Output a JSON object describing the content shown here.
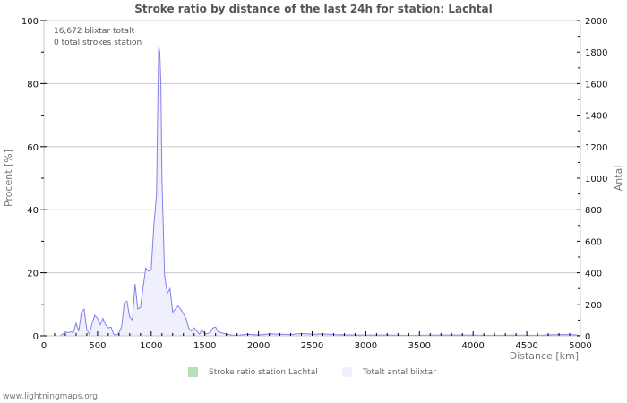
{
  "chart": {
    "title": "Stroke ratio by distance of the last 24h for station: Lachtal",
    "info_line1": "16,672 blixtar totalt",
    "info_line2": "0 total strokes station",
    "left_axis_title": "Procent   [%]",
    "right_axis_title": "Antal",
    "x_axis_title": "Distance   [km]",
    "legend": [
      {
        "label": "Stroke ratio station Lachtal",
        "color": "#b8e0b8"
      },
      {
        "label": "Totalt antal blixtar",
        "color": "#f0f0fc"
      }
    ],
    "footer": "www.lightningmaps.org"
  },
  "chart_data": {
    "type": "area",
    "title": "Stroke ratio by distance of the last 24h for station: Lachtal",
    "xlabel": "Distance [km]",
    "ylabel_left": "Procent [%]",
    "ylabel_right": "Antal",
    "xlim": [
      0,
      5000
    ],
    "ylim_left": [
      0,
      100
    ],
    "ylim_right": [
      0,
      2000
    ],
    "x_ticks": [
      0,
      500,
      1000,
      1500,
      2000,
      2500,
      3000,
      3500,
      4000,
      4500,
      5000
    ],
    "y_left_ticks": [
      0,
      20,
      40,
      60,
      80,
      100
    ],
    "y_right_ticks": [
      0,
      200,
      400,
      600,
      800,
      1000,
      1200,
      1400,
      1600,
      1800,
      2000
    ],
    "grid": true,
    "legend_position": "bottom",
    "series": [
      {
        "name": "Stroke ratio station Lachtal",
        "axis": "left",
        "color": "#b8e0b8",
        "x": [],
        "values": []
      },
      {
        "name": "Totalt antal blixtar",
        "axis": "right",
        "color": "#f0f0fc",
        "line_color": "#8080e8",
        "x": [
          150,
          175,
          200,
          225,
          250,
          275,
          300,
          325,
          350,
          375,
          400,
          425,
          450,
          475,
          500,
          525,
          550,
          575,
          600,
          625,
          650,
          675,
          700,
          725,
          750,
          775,
          800,
          825,
          850,
          875,
          900,
          925,
          950,
          975,
          1000,
          1025,
          1050,
          1060,
          1070,
          1080,
          1090,
          1100,
          1125,
          1150,
          1175,
          1200,
          1225,
          1250,
          1275,
          1300,
          1325,
          1350,
          1375,
          1400,
          1425,
          1450,
          1475,
          1500,
          1525,
          1550,
          1575,
          1600,
          1625,
          1650,
          1675,
          1700,
          1750,
          1800,
          1900,
          2000,
          2100,
          2200,
          2300,
          2400,
          2500,
          2600,
          2700,
          2800,
          2900,
          3000,
          3200,
          3400,
          3600,
          3800,
          4000,
          4200,
          4400,
          4600,
          4800,
          4950,
          5000
        ],
        "values": [
          0,
          10,
          25,
          20,
          25,
          20,
          80,
          30,
          150,
          170,
          40,
          10,
          80,
          130,
          110,
          70,
          110,
          70,
          50,
          55,
          10,
          5,
          20,
          60,
          210,
          220,
          120,
          100,
          330,
          170,
          180,
          310,
          430,
          410,
          420,
          700,
          900,
          1400,
          1835,
          1800,
          1600,
          1000,
          380,
          270,
          300,
          150,
          170,
          190,
          170,
          140,
          110,
          50,
          30,
          50,
          30,
          10,
          40,
          10,
          15,
          20,
          50,
          55,
          25,
          20,
          15,
          10,
          5,
          3,
          10,
          5,
          12,
          10,
          8,
          15,
          10,
          12,
          8,
          6,
          5,
          4,
          5,
          3,
          4,
          5,
          4,
          3,
          4,
          3,
          8,
          6,
          0
        ]
      }
    ]
  }
}
